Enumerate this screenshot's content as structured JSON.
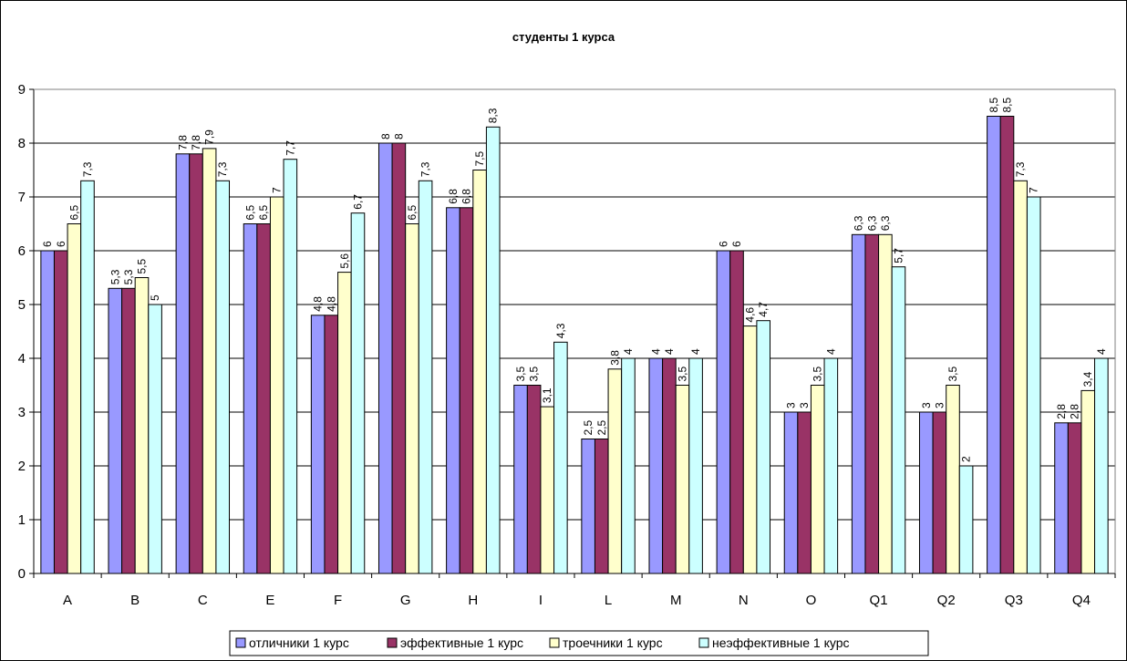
{
  "chart_data": {
    "type": "bar",
    "title": "студенты 1 курса",
    "xlabel": "",
    "ylabel": "",
    "ylim": [
      0,
      9
    ],
    "yticks": [
      "0",
      "1",
      "2",
      "3",
      "4",
      "5",
      "6",
      "7",
      "8",
      "9"
    ],
    "grid": true,
    "legend_position": "bottom",
    "categories": [
      "A",
      "B",
      "C",
      "E",
      "F",
      "G",
      "H",
      "I",
      "L",
      "M",
      "N",
      "O",
      "Q1",
      "Q2",
      "Q3",
      "Q4"
    ],
    "series": [
      {
        "name": "отличники 1 курс",
        "color": "#9999ff",
        "values": [
          6,
          5.3,
          7.8,
          6.5,
          4.8,
          8,
          6.8,
          3.5,
          2.5,
          4,
          6,
          3,
          6.3,
          3,
          8.5,
          2.8
        ],
        "labels": [
          "6",
          "5,3",
          "7,8",
          "6,5",
          "4,8",
          "8",
          "6,8",
          "3,5",
          "2,5",
          "4",
          "6",
          "3",
          "6,3",
          "3",
          "8,5",
          "2,8"
        ]
      },
      {
        "name": "эффективные 1 курс",
        "color": "#993366",
        "values": [
          6,
          5.3,
          7.8,
          6.5,
          4.8,
          8,
          6.8,
          3.5,
          2.5,
          4,
          6,
          3,
          6.3,
          3,
          8.5,
          2.8
        ],
        "labels": [
          "6",
          "5,3",
          "7,8",
          "6,5",
          "4,8",
          "8",
          "6,8",
          "3,5",
          "2,5",
          "4",
          "6",
          "3",
          "6,3",
          "3",
          "8,5",
          "2,8"
        ]
      },
      {
        "name": "троечники 1 курс",
        "color": "#ffffcc",
        "values": [
          6.5,
          5.5,
          7.9,
          7,
          5.6,
          6.5,
          7.5,
          3.1,
          3.8,
          3.5,
          4.6,
          3.5,
          6.3,
          3.5,
          7.3,
          3.4
        ],
        "labels": [
          "6,5",
          "5,5",
          "7,9",
          "7",
          "5,6",
          "6,5",
          "7,5",
          "3,1",
          "3,8",
          "3,5",
          "4,6",
          "3,5",
          "6,3",
          "3,5",
          "7,3",
          "3,4"
        ]
      },
      {
        "name": "неэффективные 1 курс",
        "color": "#ccffff",
        "values": [
          7.3,
          5,
          7.3,
          7.7,
          6.7,
          7.3,
          8.3,
          4.3,
          4,
          4,
          4.7,
          4,
          5.7,
          2,
          7,
          4
        ],
        "labels": [
          "7,3",
          "5",
          "7,3",
          "7,7",
          "6,7",
          "7,3",
          "8,3",
          "4,3",
          "4",
          "4",
          "4,7",
          "4",
          "5,7",
          "2",
          "7",
          "4"
        ]
      }
    ]
  }
}
